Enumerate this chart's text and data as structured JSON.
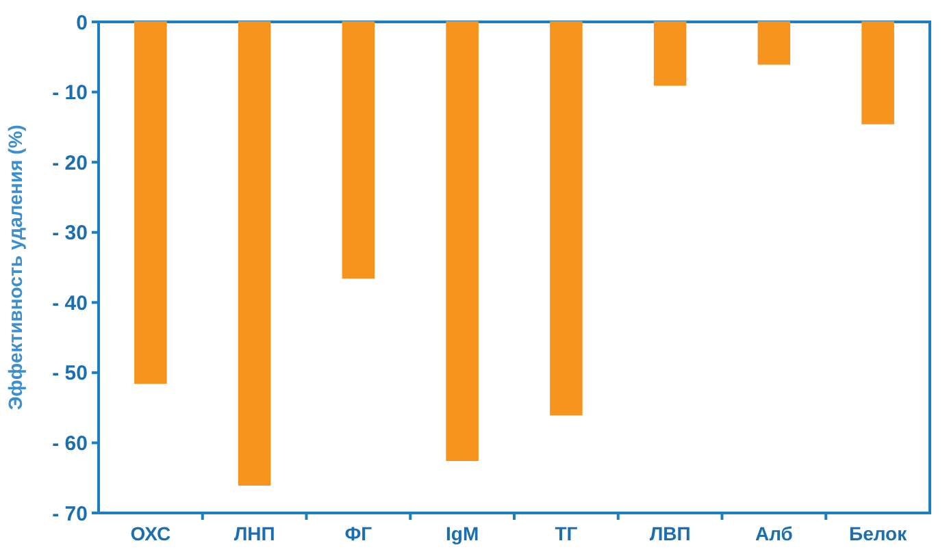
{
  "chart_data": {
    "type": "bar",
    "ylabel": "Эффективность удаления (%)",
    "categories": [
      "ОХС",
      "ЛНП",
      "ФГ",
      "IgM",
      "ТГ",
      "ЛВП",
      "Алб",
      "Белок"
    ],
    "values": [
      -51.5,
      -66,
      -36.5,
      -62.5,
      -56,
      -9,
      -6,
      -14.5
    ],
    "color": "#f7941d",
    "ylim": [
      -70,
      0
    ],
    "yticks": [
      {
        "value": 0,
        "label": "0"
      },
      {
        "value": -10,
        "label": "- 10"
      },
      {
        "value": -20,
        "label": "- 20"
      },
      {
        "value": -30,
        "label": "- 30"
      },
      {
        "value": -40,
        "label": "- 40"
      },
      {
        "value": -50,
        "label": "- 50"
      },
      {
        "value": -60,
        "label": "- 60"
      },
      {
        "value": -70,
        "label": "- 70"
      }
    ],
    "grid": false
  }
}
